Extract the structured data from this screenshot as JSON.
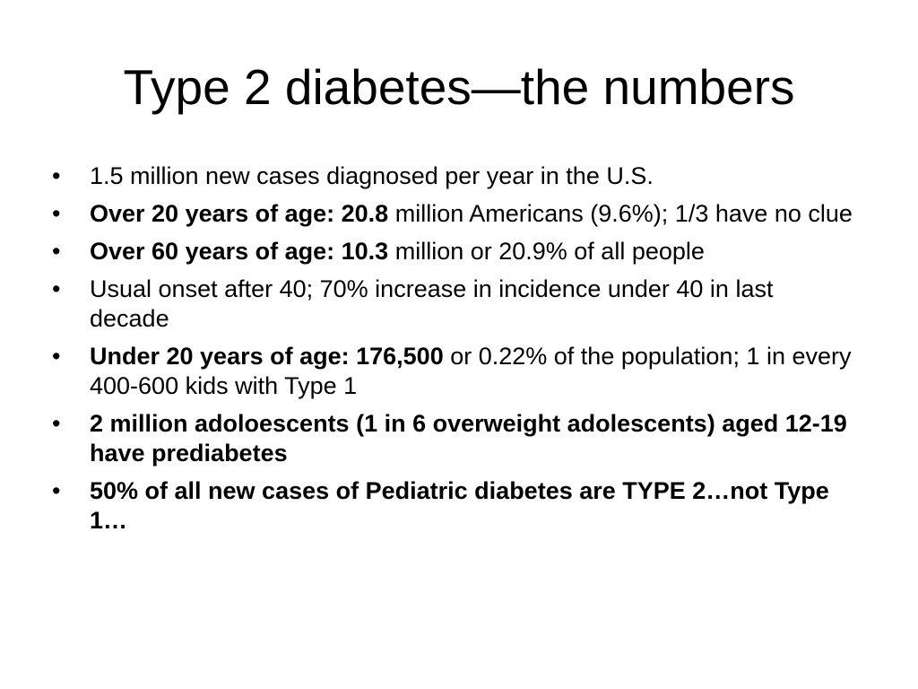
{
  "slide": {
    "title": "Type 2 diabetes—the numbers",
    "bullet_char": "•",
    "bullets": [
      {
        "bold": "",
        "text": "1.5 million new cases diagnosed per year in the U.S."
      },
      {
        "bold": "Over 20 years of age: 20.8",
        "text": " million Americans (9.6%); 1/3 have no clue"
      },
      {
        "bold": "Over 60 years of age: 10.3",
        "text": " million or 20.9% of all people"
      },
      {
        "bold": "",
        "text": "Usual onset after 40; 70% increase in incidence under 40 in last decade"
      },
      {
        "bold": "Under 20 years of age: 176,500",
        "text": " or 0.22% of the population; 1 in every 400-600 kids with Type 1"
      },
      {
        "bold": "2 million adoloescents (1 in 6 overweight adolescents) aged 12-19 have prediabetes",
        "text": ""
      },
      {
        "bold": "50% of all new cases of Pediatric diabetes are TYPE 2…not Type 1…",
        "text": ""
      }
    ]
  }
}
